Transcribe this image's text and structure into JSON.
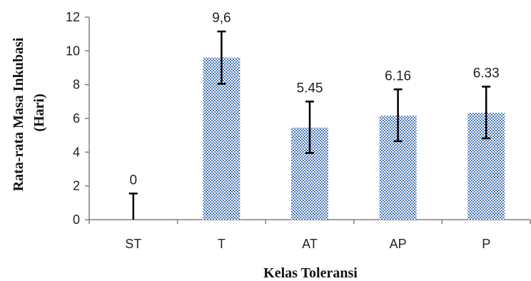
{
  "chart_data": {
    "type": "bar",
    "title": "",
    "xlabel": "Kelas Toleransi",
    "ylabel": "Rata-rata Masa Inkubasi (Hari)",
    "ylabel_lines": [
      "Rata-rata Masa Inkubasi",
      "(Hari)"
    ],
    "categories": [
      "ST",
      "T",
      "AT",
      "AP",
      "P"
    ],
    "values": [
      0,
      9.6,
      5.45,
      6.16,
      6.33
    ],
    "data_labels": [
      "0",
      "9,6",
      "5.45",
      "6.16",
      "6.33"
    ],
    "error_low": [
      0,
      8.05,
      3.95,
      4.65,
      4.82
    ],
    "error_high": [
      1.55,
      11.15,
      7.0,
      7.72,
      7.88
    ],
    "ylim": [
      0,
      12
    ],
    "yticks": [
      "0",
      "2",
      "4",
      "6",
      "8",
      "10",
      "12"
    ],
    "grid": false,
    "legend": "none",
    "bar_fill": "checkerboard",
    "colors": {
      "bar_primary": "#4a78bd",
      "bar_secondary": "#ffffff",
      "axis": "#808080",
      "error_bar": "#000000"
    }
  }
}
